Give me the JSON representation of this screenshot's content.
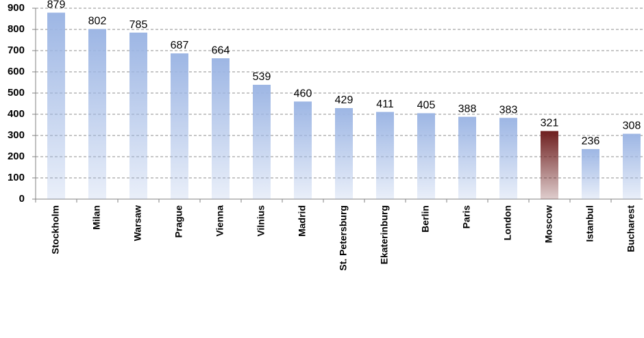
{
  "chart_data": {
    "type": "bar",
    "categories": [
      "Stockholm",
      "Milan",
      "Warsaw",
      "Prague",
      "Vienna",
      "Vilnius",
      "Madrid",
      "St. Petersburg",
      "Ekaterinburg",
      "Berlin",
      "Paris",
      "London",
      "Moscow",
      "Istanbul",
      "Bucharest"
    ],
    "values": [
      879,
      802,
      785,
      687,
      664,
      539,
      460,
      429,
      411,
      405,
      388,
      383,
      321,
      236,
      308
    ],
    "colors": [
      "#9db6e4",
      "#9db6e4",
      "#9db6e4",
      "#9db6e4",
      "#9db6e4",
      "#9db6e4",
      "#9db6e4",
      "#9db6e4",
      "#9db6e4",
      "#9db6e4",
      "#9db6e4",
      "#9db6e4",
      "#6e1f1f",
      "#9db6e4",
      "#9db6e4"
    ],
    "ylim": [
      0,
      900
    ],
    "yticks": [
      0,
      100,
      200,
      300,
      400,
      500,
      600,
      700,
      800,
      900
    ],
    "grid": true
  }
}
